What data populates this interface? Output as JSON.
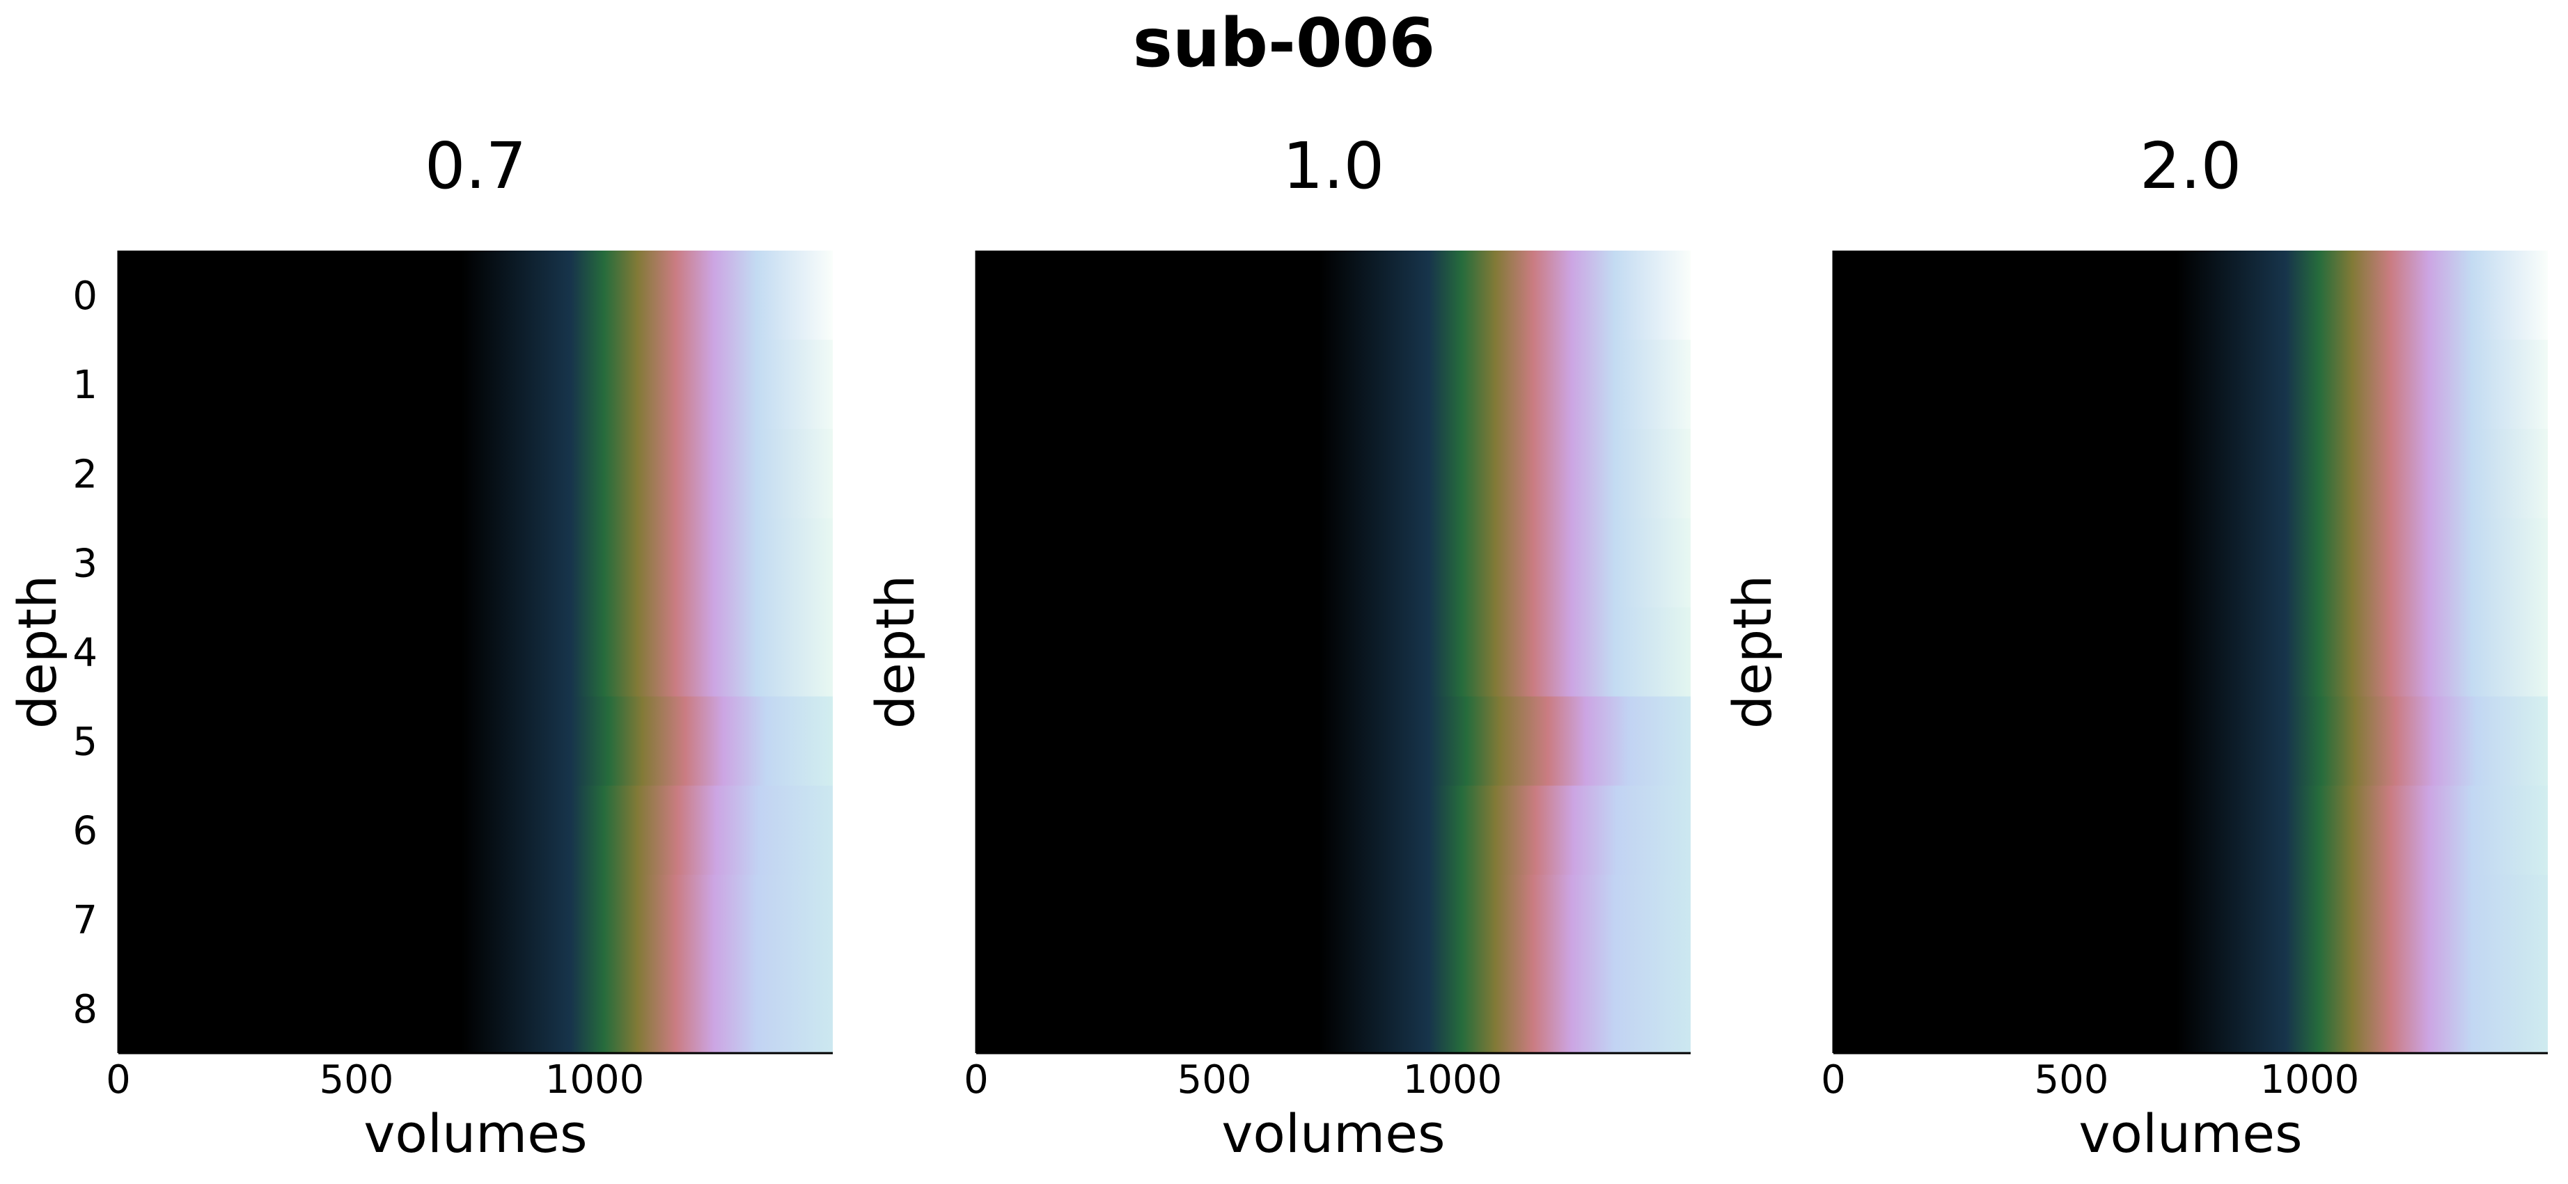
{
  "figure": {
    "suptitle": "sub-006"
  },
  "chart_data": [
    {
      "type": "heatmap",
      "title": "0.7",
      "xlabel": "volumes",
      "ylabel": "depth",
      "xlim": [
        0,
        1500
      ],
      "ylim": [
        8.5,
        -0.5
      ],
      "x_ticks": [
        "0",
        "500",
        "1000"
      ],
      "y_ticks": [
        "0",
        "1",
        "2",
        "3",
        "4",
        "5",
        "6",
        "7",
        "8"
      ],
      "colormap": "cubehelix",
      "rows": [
        {
          "depth": 0,
          "stops": [
            [
              0,
              0
            ],
            [
              720,
              0
            ],
            [
              950,
              0.18
            ],
            [
              1020,
              0.32
            ],
            [
              1090,
              0.46
            ],
            [
              1170,
              0.58
            ],
            [
              1250,
              0.72
            ],
            [
              1340,
              0.84
            ],
            [
              1500,
              0.99
            ]
          ]
        },
        {
          "depth": 1,
          "stops": [
            [
              0,
              0
            ],
            [
              720,
              0
            ],
            [
              950,
              0.18
            ],
            [
              1020,
              0.32
            ],
            [
              1090,
              0.46
            ],
            [
              1170,
              0.58
            ],
            [
              1250,
              0.72
            ],
            [
              1340,
              0.84
            ],
            [
              1500,
              0.97
            ]
          ]
        },
        {
          "depth": 2,
          "stops": [
            [
              0,
              0
            ],
            [
              720,
              0
            ],
            [
              950,
              0.18
            ],
            [
              1020,
              0.32
            ],
            [
              1090,
              0.46
            ],
            [
              1170,
              0.58
            ],
            [
              1250,
              0.72
            ],
            [
              1340,
              0.84
            ],
            [
              1500,
              0.96
            ]
          ]
        },
        {
          "depth": 3,
          "stops": [
            [
              0,
              0
            ],
            [
              720,
              0
            ],
            [
              950,
              0.18
            ],
            [
              1020,
              0.32
            ],
            [
              1090,
              0.46
            ],
            [
              1170,
              0.58
            ],
            [
              1250,
              0.72
            ],
            [
              1340,
              0.84
            ],
            [
              1500,
              0.95
            ]
          ]
        },
        {
          "depth": 4,
          "stops": [
            [
              0,
              0
            ],
            [
              720,
              0
            ],
            [
              950,
              0.18
            ],
            [
              1020,
              0.32
            ],
            [
              1090,
              0.46
            ],
            [
              1170,
              0.58
            ],
            [
              1250,
              0.72
            ],
            [
              1340,
              0.84
            ],
            [
              1500,
              0.95
            ]
          ]
        },
        {
          "depth": 5,
          "stops": [
            [
              0,
              0
            ],
            [
              720,
              0
            ],
            [
              950,
              0.18
            ],
            [
              1030,
              0.32
            ],
            [
              1100,
              0.46
            ],
            [
              1190,
              0.58
            ],
            [
              1270,
              0.72
            ],
            [
              1360,
              0.83
            ],
            [
              1500,
              0.9
            ]
          ]
        },
        {
          "depth": 6,
          "stops": [
            [
              0,
              0
            ],
            [
              720,
              0
            ],
            [
              950,
              0.18
            ],
            [
              1020,
              0.32
            ],
            [
              1090,
              0.46
            ],
            [
              1175,
              0.58
            ],
            [
              1255,
              0.72
            ],
            [
              1345,
              0.82
            ],
            [
              1500,
              0.88
            ]
          ]
        },
        {
          "depth": 7,
          "stops": [
            [
              0,
              0
            ],
            [
              720,
              0
            ],
            [
              950,
              0.18
            ],
            [
              1020,
              0.32
            ],
            [
              1090,
              0.46
            ],
            [
              1170,
              0.58
            ],
            [
              1250,
              0.72
            ],
            [
              1340,
              0.82
            ],
            [
              1500,
              0.88
            ]
          ]
        },
        {
          "depth": 8,
          "stops": [
            [
              0,
              0
            ],
            [
              720,
              0
            ],
            [
              950,
              0.18
            ],
            [
              1020,
              0.32
            ],
            [
              1090,
              0.46
            ],
            [
              1170,
              0.58
            ],
            [
              1250,
              0.72
            ],
            [
              1340,
              0.82
            ],
            [
              1500,
              0.88
            ]
          ]
        }
      ]
    },
    {
      "type": "heatmap",
      "title": "1.0",
      "xlabel": "volumes",
      "ylabel": "depth",
      "xlim": [
        0,
        1500
      ],
      "ylim": [
        8.5,
        -0.5
      ],
      "x_ticks": [
        "0",
        "500",
        "1000"
      ],
      "y_ticks": [],
      "colormap": "cubehelix",
      "rows": [
        {
          "depth": 0,
          "stops": [
            [
              0,
              0
            ],
            [
              720,
              0
            ],
            [
              950,
              0.18
            ],
            [
              1020,
              0.32
            ],
            [
              1090,
              0.46
            ],
            [
              1170,
              0.58
            ],
            [
              1250,
              0.72
            ],
            [
              1340,
              0.84
            ],
            [
              1500,
              0.99
            ]
          ]
        },
        {
          "depth": 1,
          "stops": [
            [
              0,
              0
            ],
            [
              720,
              0
            ],
            [
              950,
              0.18
            ],
            [
              1020,
              0.32
            ],
            [
              1090,
              0.46
            ],
            [
              1170,
              0.58
            ],
            [
              1250,
              0.72
            ],
            [
              1340,
              0.84
            ],
            [
              1500,
              0.97
            ]
          ]
        },
        {
          "depth": 2,
          "stops": [
            [
              0,
              0
            ],
            [
              720,
              0
            ],
            [
              950,
              0.18
            ],
            [
              1020,
              0.32
            ],
            [
              1090,
              0.46
            ],
            [
              1170,
              0.58
            ],
            [
              1250,
              0.72
            ],
            [
              1340,
              0.84
            ],
            [
              1500,
              0.96
            ]
          ]
        },
        {
          "depth": 3,
          "stops": [
            [
              0,
              0
            ],
            [
              720,
              0
            ],
            [
              950,
              0.18
            ],
            [
              1020,
              0.32
            ],
            [
              1090,
              0.46
            ],
            [
              1170,
              0.58
            ],
            [
              1250,
              0.72
            ],
            [
              1340,
              0.84
            ],
            [
              1500,
              0.95
            ]
          ]
        },
        {
          "depth": 4,
          "stops": [
            [
              0,
              0
            ],
            [
              720,
              0
            ],
            [
              950,
              0.18
            ],
            [
              1020,
              0.32
            ],
            [
              1090,
              0.46
            ],
            [
              1170,
              0.58
            ],
            [
              1250,
              0.72
            ],
            [
              1340,
              0.84
            ],
            [
              1500,
              0.94
            ]
          ]
        },
        {
          "depth": 5,
          "stops": [
            [
              0,
              0
            ],
            [
              720,
              0
            ],
            [
              950,
              0.18
            ],
            [
              1030,
              0.32
            ],
            [
              1100,
              0.46
            ],
            [
              1200,
              0.58
            ],
            [
              1280,
              0.72
            ],
            [
              1370,
              0.82
            ],
            [
              1500,
              0.88
            ]
          ]
        },
        {
          "depth": 6,
          "stops": [
            [
              0,
              0
            ],
            [
              720,
              0
            ],
            [
              950,
              0.18
            ],
            [
              1020,
              0.32
            ],
            [
              1090,
              0.46
            ],
            [
              1175,
              0.58
            ],
            [
              1255,
              0.72
            ],
            [
              1345,
              0.82
            ],
            [
              1500,
              0.88
            ]
          ]
        },
        {
          "depth": 7,
          "stops": [
            [
              0,
              0
            ],
            [
              720,
              0
            ],
            [
              950,
              0.18
            ],
            [
              1020,
              0.32
            ],
            [
              1090,
              0.46
            ],
            [
              1170,
              0.58
            ],
            [
              1250,
              0.72
            ],
            [
              1340,
              0.82
            ],
            [
              1500,
              0.88
            ]
          ]
        },
        {
          "depth": 8,
          "stops": [
            [
              0,
              0
            ],
            [
              720,
              0
            ],
            [
              950,
              0.18
            ],
            [
              1020,
              0.32
            ],
            [
              1090,
              0.46
            ],
            [
              1170,
              0.58
            ],
            [
              1250,
              0.72
            ],
            [
              1340,
              0.82
            ],
            [
              1500,
              0.88
            ]
          ]
        }
      ]
    },
    {
      "type": "heatmap",
      "title": "2.0",
      "xlabel": "volumes",
      "ylabel": "depth",
      "xlim": [
        0,
        1500
      ],
      "ylim": [
        8.5,
        -0.5
      ],
      "x_ticks": [
        "0",
        "500",
        "1000"
      ],
      "y_ticks": [],
      "colormap": "cubehelix",
      "rows": [
        {
          "depth": 0,
          "stops": [
            [
              0,
              0
            ],
            [
              720,
              0
            ],
            [
              950,
              0.18
            ],
            [
              1020,
              0.32
            ],
            [
              1090,
              0.46
            ],
            [
              1170,
              0.58
            ],
            [
              1250,
              0.72
            ],
            [
              1340,
              0.84
            ],
            [
              1500,
              0.99
            ]
          ]
        },
        {
          "depth": 1,
          "stops": [
            [
              0,
              0
            ],
            [
              720,
              0
            ],
            [
              950,
              0.18
            ],
            [
              1020,
              0.32
            ],
            [
              1090,
              0.46
            ],
            [
              1170,
              0.58
            ],
            [
              1250,
              0.72
            ],
            [
              1340,
              0.84
            ],
            [
              1500,
              0.97
            ]
          ]
        },
        {
          "depth": 2,
          "stops": [
            [
              0,
              0
            ],
            [
              720,
              0
            ],
            [
              950,
              0.18
            ],
            [
              1020,
              0.32
            ],
            [
              1090,
              0.46
            ],
            [
              1170,
              0.58
            ],
            [
              1250,
              0.72
            ],
            [
              1340,
              0.84
            ],
            [
              1500,
              0.96
            ]
          ]
        },
        {
          "depth": 3,
          "stops": [
            [
              0,
              0
            ],
            [
              720,
              0
            ],
            [
              950,
              0.18
            ],
            [
              1020,
              0.32
            ],
            [
              1090,
              0.46
            ],
            [
              1170,
              0.58
            ],
            [
              1250,
              0.72
            ],
            [
              1340,
              0.84
            ],
            [
              1500,
              0.95
            ]
          ]
        },
        {
          "depth": 4,
          "stops": [
            [
              0,
              0
            ],
            [
              720,
              0
            ],
            [
              950,
              0.18
            ],
            [
              1020,
              0.32
            ],
            [
              1090,
              0.46
            ],
            [
              1170,
              0.58
            ],
            [
              1250,
              0.72
            ],
            [
              1340,
              0.84
            ],
            [
              1500,
              0.95
            ]
          ]
        },
        {
          "depth": 5,
          "stops": [
            [
              0,
              0
            ],
            [
              720,
              0
            ],
            [
              950,
              0.18
            ],
            [
              1025,
              0.32
            ],
            [
              1095,
              0.46
            ],
            [
              1180,
              0.58
            ],
            [
              1260,
              0.72
            ],
            [
              1350,
              0.83
            ],
            [
              1500,
              0.91
            ]
          ]
        },
        {
          "depth": 6,
          "stops": [
            [
              0,
              0
            ],
            [
              720,
              0
            ],
            [
              950,
              0.18
            ],
            [
              1020,
              0.32
            ],
            [
              1090,
              0.46
            ],
            [
              1170,
              0.58
            ],
            [
              1250,
              0.72
            ],
            [
              1340,
              0.83
            ],
            [
              1500,
              0.9
            ]
          ]
        },
        {
          "depth": 7,
          "stops": [
            [
              0,
              0
            ],
            [
              720,
              0
            ],
            [
              950,
              0.18
            ],
            [
              1020,
              0.32
            ],
            [
              1090,
              0.46
            ],
            [
              1170,
              0.58
            ],
            [
              1250,
              0.72
            ],
            [
              1340,
              0.83
            ],
            [
              1500,
              0.89
            ]
          ]
        },
        {
          "depth": 8,
          "stops": [
            [
              0,
              0
            ],
            [
              720,
              0
            ],
            [
              950,
              0.18
            ],
            [
              1020,
              0.32
            ],
            [
              1090,
              0.46
            ],
            [
              1170,
              0.58
            ],
            [
              1250,
              0.72
            ],
            [
              1340,
              0.83
            ],
            [
              1500,
              0.89
            ]
          ]
        }
      ]
    }
  ]
}
